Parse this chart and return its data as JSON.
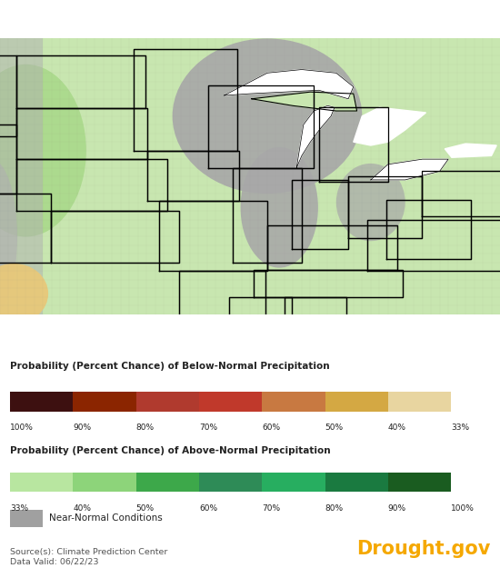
{
  "below_normal_colors": [
    "#3d1010",
    "#8b2500",
    "#b03a2e",
    "#c0392b",
    "#c87941",
    "#d4a843",
    "#e8d5a0"
  ],
  "below_normal_labels": [
    "100%",
    "90%",
    "80%",
    "70%",
    "60%",
    "50%",
    "40%",
    "33%"
  ],
  "above_normal_colors": [
    "#b8e6a0",
    "#8dd47a",
    "#3da84a",
    "#2e8b57",
    "#27ae60",
    "#1a7a40",
    "#1a5c20"
  ],
  "above_normal_labels": [
    "33%",
    "40%",
    "50%",
    "60%",
    "70%",
    "80%",
    "90%",
    "100%"
  ],
  "near_normal_color": "#a0a0a0",
  "near_normal_label": "Near-Normal Conditions",
  "source_text": "Source(s): Climate Prediction Center\nData Valid: 06/22/23",
  "drought_gov_text": "Drought.gov",
  "drought_gov_color": "#f5a800",
  "title_below": "Probability (Percent Chance) of Below-Normal Precipitation",
  "title_above": "Probability (Percent Chance) of Above-Normal Precipitation",
  "background_color": "#ffffff",
  "map_bg_color": "#c8e6b0",
  "figsize": [
    5.5,
    6.25
  ],
  "dpi": 100,
  "lon_min": -105,
  "lon_max": -76,
  "lat_min": 34,
  "lat_max": 50
}
